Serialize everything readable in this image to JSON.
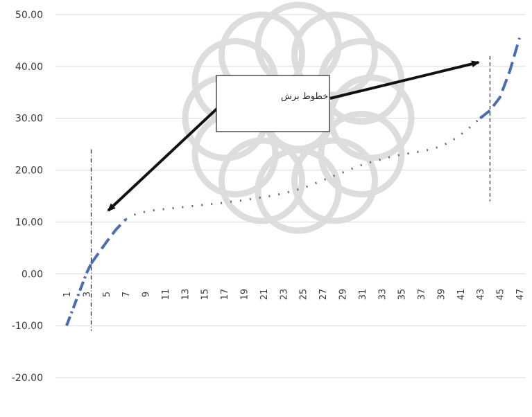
{
  "chart_data": {
    "type": "line",
    "title": "",
    "xlabel": "",
    "ylabel": "",
    "x": [
      1,
      2,
      3,
      4,
      5,
      6,
      7,
      8,
      9,
      10,
      11,
      12,
      13,
      14,
      15,
      16,
      17,
      18,
      19,
      20,
      21,
      22,
      23,
      24,
      25,
      26,
      27,
      28,
      29,
      30,
      31,
      32,
      33,
      34,
      35,
      36,
      37,
      38,
      39,
      40,
      41,
      42,
      43,
      44,
      45,
      46,
      47
    ],
    "x_tick_labels": [
      "1",
      "3",
      "5",
      "7",
      "9",
      "11",
      "13",
      "15",
      "17",
      "19",
      "21",
      "23",
      "25",
      "27",
      "29",
      "31",
      "33",
      "35",
      "37",
      "39",
      "41",
      "43",
      "45",
      "47"
    ],
    "ylim": [
      -20,
      50
    ],
    "y_tick_labels": [
      "50.00",
      "40.00",
      "30.00",
      "20.00",
      "10.00",
      "0.00",
      "-10.00",
      "-20.00"
    ],
    "grid": "horizontal",
    "series": [
      {
        "style": "dash-dot",
        "color": "#4a6db0",
        "x": [
          1,
          2,
          3,
          3.5
        ],
        "values": [
          -10,
          -5,
          0,
          2
        ]
      },
      {
        "style": "long-dash",
        "color": "#4a6db0",
        "x": [
          3.5,
          5,
          6,
          7
        ],
        "values": [
          2,
          6,
          8.5,
          10.5
        ]
      },
      {
        "style": "dotted",
        "color": "#5a6c8c",
        "x": [
          7,
          8,
          9,
          10,
          11,
          12,
          13,
          14,
          15,
          16,
          17,
          18,
          19,
          20,
          21,
          22,
          23,
          24,
          25,
          26,
          27,
          28,
          29,
          30,
          31,
          32,
          33,
          34,
          35,
          36,
          37,
          38,
          39,
          40,
          41,
          42,
          43
        ],
        "values": [
          10.5,
          11.5,
          12,
          12.3,
          12.5,
          12.7,
          12.9,
          13.1,
          13.3,
          13.5,
          13.7,
          14,
          14.2,
          14.5,
          14.8,
          15.1,
          15.5,
          16,
          16.5,
          17.3,
          18,
          18.8,
          19.5,
          20.3,
          21,
          21.6,
          22.1,
          22.6,
          23,
          23.3,
          23.6,
          24,
          24.6,
          25.5,
          26.8,
          28.3,
          30
        ]
      },
      {
        "style": "long-dash",
        "color": "#4a6db0",
        "x": [
          43,
          44,
          45,
          46,
          47
        ],
        "values": [
          30,
          31.5,
          34,
          39,
          45.5
        ]
      }
    ],
    "cutoff_lines": [
      {
        "x": 3.5,
        "y_top": 24,
        "y_bottom": -11
      },
      {
        "x": 44,
        "y_top": 42,
        "y_bottom": 14
      }
    ],
    "annotation": {
      "text": "خطوط برش"
    }
  }
}
